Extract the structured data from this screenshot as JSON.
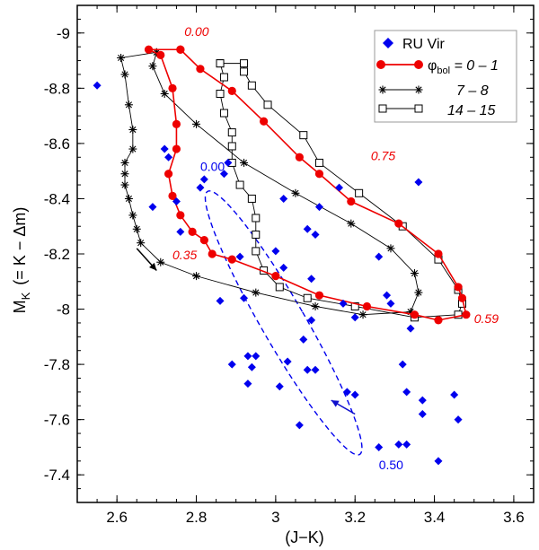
{
  "chart_data": {
    "type": "scatter",
    "title": "",
    "xlabel": "(J−K)",
    "ylabel_main": "M",
    "ylabel_sub": "K",
    "ylabel_rest": "(= K − Δm)",
    "xlim": [
      2.5,
      3.65
    ],
    "ylim": [
      -7.3,
      -9.1
    ],
    "xticks": [
      2.6,
      2.8,
      3.0,
      3.2,
      3.4,
      3.6
    ],
    "xtick_labels": [
      "2.6",
      "2.8",
      "3",
      "3.2",
      "3.4",
      "3.6"
    ],
    "yticks": [
      -9.0,
      -8.8,
      -8.6,
      -8.4,
      -8.2,
      -8.0,
      -7.8,
      -7.6,
      -7.4
    ],
    "ytick_labels": [
      "-9",
      "-8.8",
      "-8.6",
      "-8.4",
      "-8.2",
      "-8",
      "-7.8",
      "-7.6",
      "-7.4"
    ],
    "legend": {
      "position": "top-right",
      "entries": [
        {
          "label": "RU Vir"
        },
        {
          "label_main": "φ",
          "label_sub": "bol",
          "label_rest": " = 0 – 1"
        },
        {
          "label": "7 – 8"
        },
        {
          "label": "14 – 15"
        }
      ]
    },
    "colors": {
      "obs": "#0000ee",
      "phibol": "#ee0000",
      "model78": "#000000",
      "model1415": "#000000",
      "ellipse": "#0000ee",
      "arrow_black": "#000000",
      "arrow_blue": "#1010cc"
    },
    "series": [
      {
        "name": "RU Vir",
        "style": "diamond",
        "points": [
          [
            2.55,
            -8.81
          ],
          [
            2.72,
            -8.58
          ],
          [
            2.73,
            -8.55
          ],
          [
            2.69,
            -8.37
          ],
          [
            2.75,
            -8.39
          ],
          [
            2.76,
            -8.28
          ],
          [
            2.81,
            -8.44
          ],
          [
            2.82,
            -8.47
          ],
          [
            2.87,
            -8.49
          ],
          [
            2.88,
            -8.53
          ],
          [
            2.86,
            -8.03
          ],
          [
            2.91,
            -8.19
          ],
          [
            2.92,
            -8.04
          ],
          [
            3.02,
            -8.4
          ],
          [
            3.0,
            -8.21
          ],
          [
            3.02,
            -8.15
          ],
          [
            3.08,
            -8.29
          ],
          [
            3.1,
            -8.27
          ],
          [
            3.09,
            -8.11
          ],
          [
            3.11,
            -8.37
          ],
          [
            3.16,
            -8.44
          ],
          [
            3.26,
            -8.19
          ],
          [
            3.36,
            -8.46
          ],
          [
            3.17,
            -8.02
          ],
          [
            3.2,
            -7.97
          ],
          [
            3.28,
            -8.05
          ],
          [
            3.29,
            -8.02
          ],
          [
            3.34,
            -7.93
          ],
          [
            3.09,
            -7.96
          ],
          [
            3.08,
            -7.78
          ],
          [
            3.07,
            -7.89
          ],
          [
            3.03,
            -7.81
          ],
          [
            2.93,
            -7.83
          ],
          [
            2.95,
            -7.83
          ],
          [
            2.94,
            -7.79
          ],
          [
            2.89,
            -7.8
          ],
          [
            2.93,
            -7.73
          ],
          [
            3.01,
            -7.72
          ],
          [
            3.1,
            -7.78
          ],
          [
            3.18,
            -7.7
          ],
          [
            3.2,
            -7.69
          ],
          [
            3.32,
            -7.8
          ],
          [
            3.33,
            -7.7
          ],
          [
            3.37,
            -7.67
          ],
          [
            3.37,
            -7.62
          ],
          [
            3.45,
            -7.69
          ],
          [
            3.46,
            -7.6
          ],
          [
            3.06,
            -7.58
          ],
          [
            3.26,
            -7.5
          ],
          [
            3.31,
            -7.51
          ],
          [
            3.33,
            -7.51
          ],
          [
            3.41,
            -7.45
          ]
        ]
      },
      {
        "name": "phi_bol 0-1",
        "style": "filled-circle-line",
        "points": [
          [
            2.76,
            -8.94
          ],
          [
            2.68,
            -8.94
          ],
          [
            2.71,
            -8.92
          ],
          [
            2.74,
            -8.8
          ],
          [
            2.75,
            -8.67
          ],
          [
            2.75,
            -8.58
          ],
          [
            2.73,
            -8.49
          ],
          [
            2.74,
            -8.41
          ],
          [
            2.76,
            -8.34
          ],
          [
            2.79,
            -8.28
          ],
          [
            2.82,
            -8.25
          ],
          [
            2.84,
            -8.2
          ],
          [
            2.89,
            -8.18
          ],
          [
            3.0,
            -8.12
          ],
          [
            3.11,
            -8.05
          ],
          [
            3.23,
            -8.01
          ],
          [
            3.35,
            -7.98
          ],
          [
            3.41,
            -7.96
          ],
          [
            3.48,
            -7.98
          ],
          [
            3.47,
            -8.04
          ],
          [
            3.46,
            -8.08
          ],
          [
            3.41,
            -8.2
          ],
          [
            3.31,
            -8.31
          ],
          [
            3.19,
            -8.39
          ],
          [
            3.11,
            -8.49
          ],
          [
            3.06,
            -8.55
          ],
          [
            2.97,
            -8.68
          ],
          [
            2.89,
            -8.79
          ],
          [
            2.81,
            -8.87
          ],
          [
            2.76,
            -8.94
          ]
        ],
        "phase_labels": [
          {
            "text": "0.00",
            "x": 2.77,
            "y": -8.99
          },
          {
            "text": "0.75",
            "x": 3.24,
            "y": -8.54
          },
          {
            "text": "0.35",
            "x": 2.74,
            "y": -8.18
          },
          {
            "text": "0.59",
            "x": 3.5,
            "y": -7.95
          }
        ]
      },
      {
        "name": "model 7-8",
        "style": "asterisk-line",
        "points": [
          [
            2.7,
            -8.93
          ],
          [
            2.61,
            -8.91
          ],
          [
            2.62,
            -8.85
          ],
          [
            2.63,
            -8.74
          ],
          [
            2.64,
            -8.65
          ],
          [
            2.64,
            -8.58
          ],
          [
            2.62,
            -8.53
          ],
          [
            2.62,
            -8.49
          ],
          [
            2.62,
            -8.45
          ],
          [
            2.63,
            -8.4
          ],
          [
            2.64,
            -8.34
          ],
          [
            2.65,
            -8.29
          ],
          [
            2.66,
            -8.24
          ],
          [
            2.71,
            -8.17
          ],
          [
            2.8,
            -8.12
          ],
          [
            2.95,
            -8.06
          ],
          [
            3.1,
            -8.01
          ],
          [
            3.22,
            -7.98
          ],
          [
            3.34,
            -7.99
          ],
          [
            3.36,
            -8.06
          ],
          [
            3.35,
            -8.13
          ],
          [
            3.29,
            -8.22
          ],
          [
            3.19,
            -8.31
          ],
          [
            3.05,
            -8.42
          ],
          [
            2.92,
            -8.53
          ],
          [
            2.8,
            -8.67
          ],
          [
            2.72,
            -8.78
          ],
          [
            2.69,
            -8.88
          ],
          [
            2.7,
            -8.93
          ]
        ]
      },
      {
        "name": "model 14-15",
        "style": "open-square-line",
        "points": [
          [
            2.86,
            -8.89
          ],
          [
            2.87,
            -8.84
          ],
          [
            2.86,
            -8.78
          ],
          [
            2.87,
            -8.71
          ],
          [
            2.89,
            -8.64
          ],
          [
            2.89,
            -8.59
          ],
          [
            2.89,
            -8.53
          ],
          [
            2.91,
            -8.45
          ],
          [
            2.94,
            -8.4
          ],
          [
            2.95,
            -8.33
          ],
          [
            2.95,
            -8.27
          ],
          [
            2.95,
            -8.21
          ],
          [
            2.97,
            -8.14
          ],
          [
            3.01,
            -8.08
          ],
          [
            3.08,
            -8.04
          ],
          [
            3.2,
            -8.01
          ],
          [
            3.35,
            -7.97
          ],
          [
            3.46,
            -7.98
          ],
          [
            3.47,
            -8.02
          ],
          [
            3.46,
            -8.07
          ],
          [
            3.41,
            -8.18
          ],
          [
            3.32,
            -8.3
          ],
          [
            3.21,
            -8.42
          ],
          [
            3.11,
            -8.53
          ],
          [
            3.07,
            -8.63
          ],
          [
            2.98,
            -8.74
          ],
          [
            2.94,
            -8.81
          ],
          [
            2.92,
            -8.86
          ],
          [
            2.92,
            -8.89
          ],
          [
            2.86,
            -8.89
          ]
        ]
      }
    ],
    "ellipse": {
      "style": "dashed",
      "center": [
        3.02,
        -7.95
      ],
      "semi_axes": [
        0.055,
        0.55
      ],
      "rotation_deg": -30,
      "labels": [
        {
          "text": "0.00",
          "x": 2.81,
          "y": -8.5
        },
        {
          "text": "0.50",
          "x": 3.26,
          "y": -7.42
        }
      ]
    },
    "arrows": [
      {
        "from": [
          2.65,
          -8.22
        ],
        "to": [
          2.7,
          -8.14
        ],
        "color_key": "arrow_black"
      },
      {
        "from": [
          3.2,
          -7.62
        ],
        "to": [
          3.14,
          -7.67
        ],
        "color_key": "arrow_blue"
      }
    ]
  }
}
